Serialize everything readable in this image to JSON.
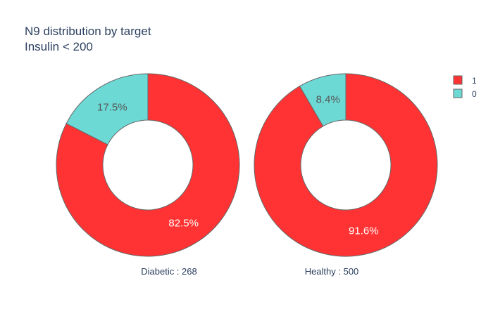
{
  "chart_data": {
    "type": "pie",
    "hole": true,
    "title_lines": [
      "N9 distribution by target",
      "Insulin < 200"
    ],
    "colors": {
      "1": "#ff3333",
      "0": "#6dd9d5",
      "outline": "#666666",
      "text_dark": "#2a3f5f"
    },
    "legend": {
      "placement": "top-right",
      "entries": [
        {
          "label": "1",
          "key": "1"
        },
        {
          "label": "0",
          "key": "0"
        }
      ]
    },
    "pies": [
      {
        "name": "Diabetic : 268",
        "slices": [
          {
            "label": "1",
            "percent": 82.5,
            "text": "82.5%"
          },
          {
            "label": "0",
            "percent": 17.5,
            "text": "17.5%"
          }
        ]
      },
      {
        "name": "Healthy : 500",
        "slices": [
          {
            "label": "1",
            "percent": 91.6,
            "text": "91.6%"
          },
          {
            "label": "0",
            "percent": 8.4,
            "text": "8.4%"
          }
        ]
      }
    ]
  }
}
